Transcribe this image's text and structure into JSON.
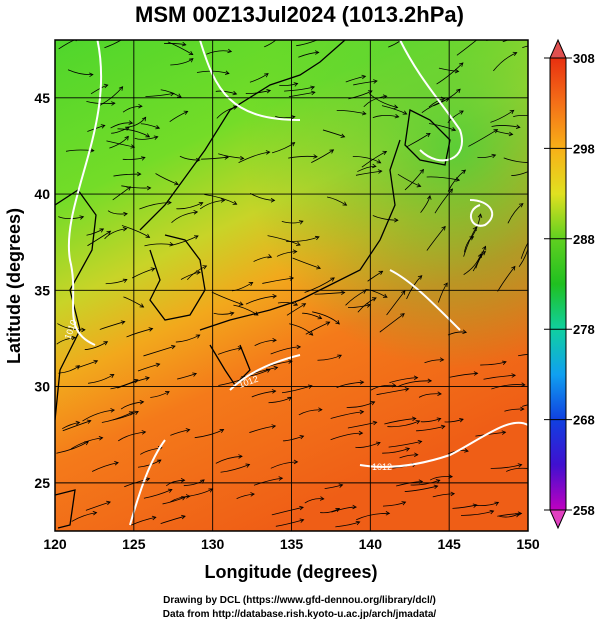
{
  "title": "MSM 00Z13Jul2024 (1013.2hPa)",
  "xaxis": {
    "label": "Longitude (degrees)",
    "ticks": [
      "120",
      "125",
      "130",
      "135",
      "140",
      "145",
      "150"
    ],
    "range": [
      120,
      150
    ]
  },
  "yaxis": {
    "label": "Latitude  (degrees)",
    "ticks": [
      "25",
      "30",
      "35",
      "40",
      "45"
    ],
    "range": [
      22.5,
      48
    ]
  },
  "colorbar": {
    "ticks": [
      "308",
      "298",
      "288",
      "278",
      "268",
      "258"
    ],
    "range": [
      258,
      308
    ]
  },
  "contour_labels": [
    "1010",
    "1012",
    "1012"
  ],
  "credits": {
    "line1": "Drawing by DCL (https://www.gfd-dennou.org/library/dcl/)",
    "line2": "Data from http://database.rish.kyoto-u.ac.jp/arch/jmadata/"
  },
  "colors": {
    "warm": "#f46a1a",
    "cool": "#3cc43c",
    "contour": "#ffffff",
    "coast": "#000000"
  }
}
